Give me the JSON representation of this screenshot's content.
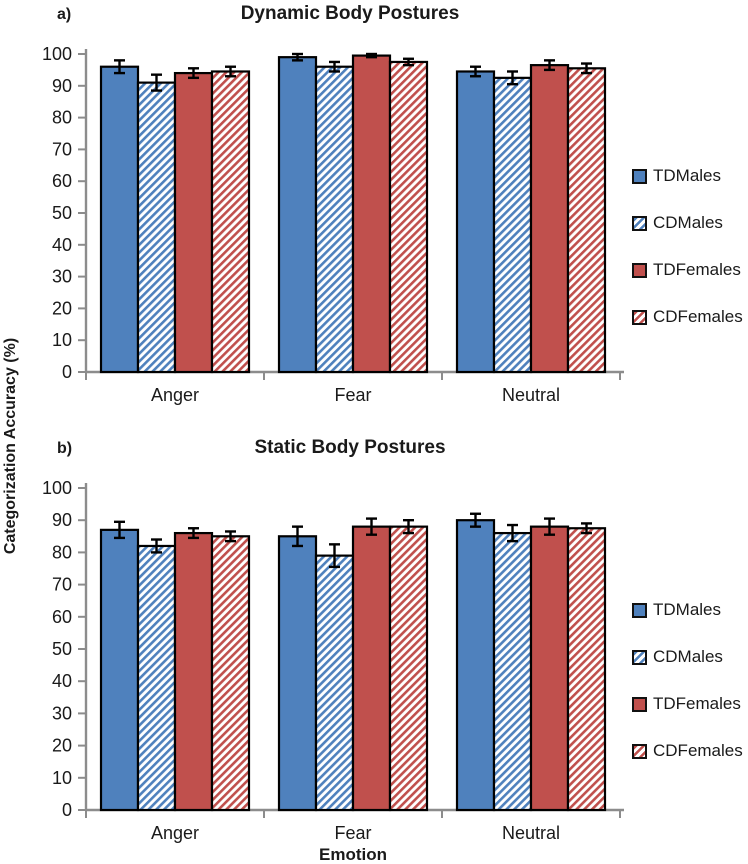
{
  "page": {
    "y_axis_label": "Categorization Accuracy (%)"
  },
  "colors": {
    "solid_blue": "#4F81BD",
    "solid_red": "#C0504D",
    "bar_border": "#000000",
    "error_bar": "#000000",
    "axis": "#8C8C8C",
    "text": "#1a1a1a"
  },
  "legend_styles": [
    "solid-blue",
    "hatch-blue",
    "solid-red",
    "hatch-red"
  ],
  "chart_data": [
    {
      "type": "bar",
      "panel": "a)",
      "title": "Dynamic Body Postures",
      "categories": [
        "Anger",
        "Fear",
        "Neutral"
      ],
      "ylabel": "Categorization Accuracy (%)",
      "xlabel": "",
      "ylim": [
        0,
        100
      ],
      "ytick_step": 10,
      "grid": false,
      "legend_position": "right-center",
      "series": [
        {
          "name": "TDMales",
          "style": "solid-blue",
          "values": [
            96,
            99,
            94.5
          ],
          "errors": [
            2,
            1,
            1.5
          ]
        },
        {
          "name": "CDMales",
          "style": "hatch-blue",
          "values": [
            91,
            96,
            92.5
          ],
          "errors": [
            2.5,
            1.5,
            2
          ]
        },
        {
          "name": "TDFemales",
          "style": "solid-red",
          "values": [
            94,
            99.5,
            96.5
          ],
          "errors": [
            1.5,
            0.5,
            1.5
          ]
        },
        {
          "name": "CDFemales",
          "style": "hatch-red",
          "values": [
            94.5,
            97.5,
            95.5
          ],
          "errors": [
            1.5,
            1,
            1.5
          ]
        }
      ]
    },
    {
      "type": "bar",
      "panel": "b)",
      "title": "Static Body Postures",
      "categories": [
        "Anger",
        "Fear",
        "Neutral"
      ],
      "ylabel": "Categorization Accuracy (%)",
      "xlabel": "Emotion",
      "ylim": [
        0,
        100
      ],
      "ytick_step": 10,
      "grid": false,
      "legend_position": "right-center",
      "series": [
        {
          "name": "TDMales",
          "style": "solid-blue",
          "values": [
            87,
            85,
            90
          ],
          "errors": [
            2.5,
            3,
            2
          ]
        },
        {
          "name": "CDMales",
          "style": "hatch-blue",
          "values": [
            82,
            79,
            86
          ],
          "errors": [
            2,
            3.5,
            2.5
          ]
        },
        {
          "name": "TDFemales",
          "style": "solid-red",
          "values": [
            86,
            88,
            88
          ],
          "errors": [
            1.5,
            2.5,
            2.5
          ]
        },
        {
          "name": "CDFemales",
          "style": "hatch-red",
          "values": [
            85,
            88,
            87.5
          ],
          "errors": [
            1.5,
            2,
            1.5
          ]
        }
      ]
    }
  ]
}
